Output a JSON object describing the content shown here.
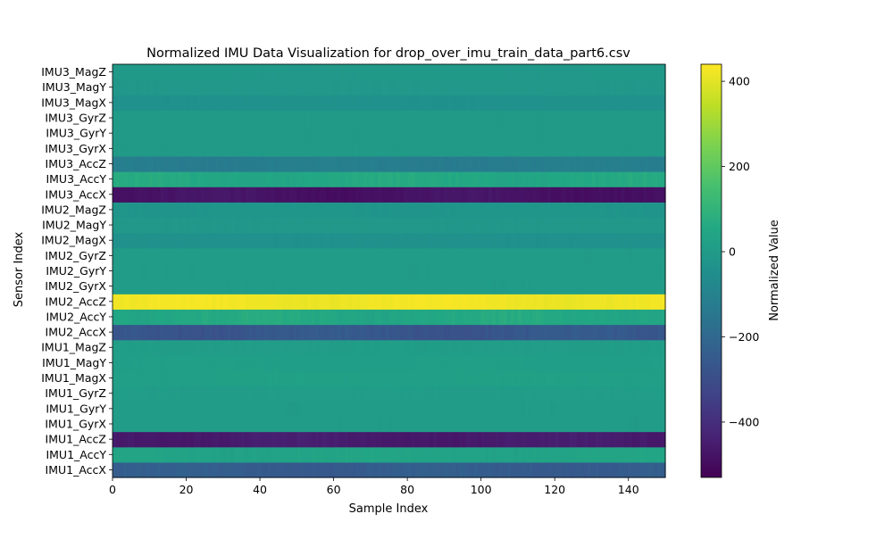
{
  "chart_data": {
    "type": "heatmap",
    "title": "Normalized IMU Data Visualization for drop_over_imu_train_data_part6.csv",
    "xlabel": "Sample Index",
    "ylabel": "Sensor Index",
    "colorbar_label": "Normalized Value",
    "colormap": "viridis",
    "xlim": [
      0,
      150
    ],
    "x_ticks": [
      0,
      20,
      40,
      60,
      80,
      100,
      120,
      140
    ],
    "clim": [
      -530,
      440
    ],
    "colorbar_ticks": [
      400,
      200,
      0,
      -200,
      -400
    ],
    "colorbar_tick_labels": [
      "400",
      "200",
      "0",
      "−200",
      "−400"
    ],
    "n_samples": 150,
    "rows": [
      {
        "label": "IMU1_AccX",
        "base": -245,
        "var": 22
      },
      {
        "label": "IMU1_AccY",
        "base": 35,
        "var": 12
      },
      {
        "label": "IMU1_AccZ",
        "base": -455,
        "var": 18
      },
      {
        "label": "IMU1_GyrX",
        "base": 5,
        "var": 2
      },
      {
        "label": "IMU1_GyrY",
        "base": 5,
        "var": 2
      },
      {
        "label": "IMU1_GyrZ",
        "base": 8,
        "var": 2
      },
      {
        "label": "IMU1_MagX",
        "base": 22,
        "var": 4
      },
      {
        "label": "IMU1_MagY",
        "base": 16,
        "var": 3
      },
      {
        "label": "IMU1_MagZ",
        "base": 10,
        "var": 3
      },
      {
        "label": "IMU2_AccX",
        "base": -265,
        "var": 28
      },
      {
        "label": "IMU2_AccY",
        "base": 55,
        "var": 22
      },
      {
        "label": "IMU2_AccZ",
        "base": 420,
        "var": 14
      },
      {
        "label": "IMU2_GyrX",
        "base": 5,
        "var": 2
      },
      {
        "label": "IMU2_GyrY",
        "base": 5,
        "var": 2
      },
      {
        "label": "IMU2_GyrZ",
        "base": 5,
        "var": 2
      },
      {
        "label": "IMU2_MagX",
        "base": -40,
        "var": 5
      },
      {
        "label": "IMU2_MagY",
        "base": -12,
        "var": 4
      },
      {
        "label": "IMU2_MagZ",
        "base": -25,
        "var": 4
      },
      {
        "label": "IMU3_AccX",
        "base": -480,
        "var": 20
      },
      {
        "label": "IMU3_AccY",
        "base": 55,
        "var": 20
      },
      {
        "label": "IMU3_AccZ",
        "base": -120,
        "var": 14
      },
      {
        "label": "IMU3_GyrX",
        "base": 0,
        "var": 2
      },
      {
        "label": "IMU3_GyrY",
        "base": 0,
        "var": 2
      },
      {
        "label": "IMU3_GyrZ",
        "base": 0,
        "var": 2
      },
      {
        "label": "IMU3_MagX",
        "base": -40,
        "var": 4
      },
      {
        "label": "IMU3_MagY",
        "base": -12,
        "var": 3
      },
      {
        "label": "IMU3_MagZ",
        "base": -8,
        "var": 3
      }
    ]
  }
}
